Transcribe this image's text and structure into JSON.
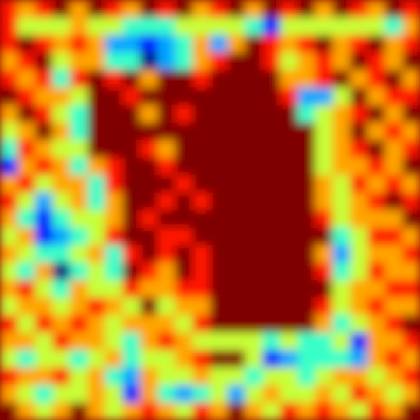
{
  "chart_data": {
    "type": "heatmap",
    "tick_labels": false,
    "cells": [
      [
        0.9,
        0.8,
        0.9,
        1,
        0.8,
        1,
        0.9,
        0.8,
        1,
        0.9,
        1,
        0.8,
        0.9,
        1,
        0.8,
        1,
        0.9,
        1,
        0.8,
        1,
        0.9,
        0.8,
        1,
        0.9
      ],
      [
        0.9,
        0.7,
        0.7,
        0.7,
        0.8,
        0.7,
        0.7,
        0.6,
        0.6,
        0.6,
        0.7,
        0.7,
        0.7,
        0.7,
        0.6,
        0.4,
        0.7,
        0.7,
        0.7,
        0.7,
        0.7,
        0.7,
        0.6,
        0.8
      ],
      [
        0.9,
        1,
        0.9,
        0.8,
        0.9,
        0.8,
        0.5,
        0.5,
        0.4,
        0.5,
        0.6,
        0.8,
        0.5,
        0.8,
        1,
        0.9,
        0.8,
        0.9,
        1,
        0.8,
        0.9,
        1,
        0.8,
        0.9
      ],
      [
        0.8,
        0.9,
        1,
        0.7,
        0.8,
        0.8,
        0.6,
        0.6,
        0.3,
        0.5,
        0.6,
        0.8,
        0.9,
        1,
        1,
        0.9,
        0.7,
        0.8,
        0.9,
        0.8,
        1,
        0.9,
        0.8,
        1
      ],
      [
        0.9,
        0.8,
        0.9,
        0.6,
        0.9,
        1,
        0.9,
        1,
        0.8,
        1,
        1,
        0.9,
        1,
        1,
        1,
        1,
        0.8,
        0.8,
        0.9,
        1,
        0.8,
        0.9,
        1,
        0.8
      ],
      [
        1,
        0.9,
        0.8,
        0.8,
        0.7,
        1,
        1,
        0.9,
        1,
        1,
        1,
        1,
        1,
        1,
        1,
        1,
        0.9,
        0.5,
        0.5,
        0.7,
        1,
        0.8,
        0.9,
        0.9
      ],
      [
        0.8,
        1,
        0.9,
        0.7,
        0.6,
        1,
        1,
        1,
        0.8,
        1,
        0.9,
        1,
        1,
        1,
        1,
        1,
        1,
        0.6,
        0.7,
        0.8,
        0.9,
        1,
        0.8,
        1
      ],
      [
        0.7,
        0.8,
        1,
        0.8,
        0.6,
        1,
        1,
        1,
        1,
        1,
        1,
        1,
        1,
        1,
        1,
        1,
        1,
        1,
        0.7,
        0.8,
        1,
        0.8,
        0.9,
        0.8
      ],
      [
        0.6,
        0.9,
        0.8,
        0.7,
        0.7,
        1,
        1,
        1,
        0.9,
        0.8,
        1,
        1,
        1,
        1,
        1,
        1,
        1,
        1,
        0.7,
        0.8,
        0.9,
        1,
        0.8,
        0.9
      ],
      [
        0.4,
        0.8,
        0.9,
        0.8,
        0.6,
        0.8,
        0.9,
        1,
        1,
        0.9,
        1,
        1,
        1,
        1,
        1,
        1,
        1,
        1,
        0.7,
        0.8,
        0.8,
        0.9,
        0.8,
        1
      ],
      [
        0.8,
        0.9,
        0.7,
        0.8,
        0.8,
        0.6,
        0.9,
        1,
        1,
        1,
        0.9,
        1,
        1,
        1,
        1,
        1,
        1,
        1,
        0.8,
        0.7,
        0.9,
        0.8,
        0.9,
        0.8
      ],
      [
        0.9,
        0.7,
        0.5,
        0.7,
        0.8,
        0.6,
        0.8,
        1,
        1,
        0.9,
        1,
        0.9,
        1,
        1,
        1,
        1,
        1,
        1,
        0.8,
        0.7,
        0.8,
        0.9,
        1,
        0.9
      ],
      [
        0.8,
        0.6,
        0.4,
        0.6,
        0.7,
        0.7,
        0.8,
        1,
        0.9,
        1,
        1,
        1,
        1,
        1,
        1,
        1,
        1,
        1,
        0.9,
        0.7,
        0.8,
        0.8,
        0.8,
        1
      ],
      [
        0.7,
        0.8,
        0.4,
        0.5,
        0.6,
        0.7,
        0.9,
        1,
        1,
        0.9,
        0.9,
        1,
        1,
        1,
        1,
        1,
        1,
        1,
        1,
        0.6,
        0.7,
        0.9,
        0.9,
        0.8
      ],
      [
        0.8,
        0.7,
        0.6,
        0.6,
        0.7,
        0.8,
        0.6,
        0.9,
        1,
        0.9,
        1,
        0.9,
        1,
        1,
        1,
        1,
        1,
        1,
        0.8,
        0.5,
        0.7,
        0.8,
        0.8,
        0.9
      ],
      [
        0.7,
        0.6,
        0.8,
        0.3,
        0.6,
        0.7,
        0.6,
        1,
        0.9,
        0.8,
        1,
        0.9,
        1,
        1,
        1,
        1,
        1,
        1,
        0.9,
        0.6,
        0.7,
        0.9,
        0.8,
        0.8
      ],
      [
        0.8,
        0.9,
        0.7,
        0.6,
        0.8,
        0.7,
        0.7,
        0.9,
        0.8,
        0.8,
        0.9,
        0.9,
        1,
        1,
        1,
        1,
        1,
        1,
        1,
        0.7,
        0.8,
        0.8,
        0.9,
        0.9
      ],
      [
        0.7,
        0.8,
        0.8,
        0.7,
        0.8,
        0.9,
        0.8,
        0.7,
        1,
        0.7,
        0.8,
        0.8,
        1,
        1,
        1,
        1,
        1,
        1,
        0.9,
        0.7,
        0.8,
        0.9,
        0.8,
        0.8
      ],
      [
        0.9,
        0.7,
        0.9,
        0.8,
        0.9,
        0.8,
        0.7,
        0.8,
        0.8,
        0.8,
        0.7,
        0.9,
        1,
        1,
        1,
        1,
        1,
        1,
        0.8,
        0.6,
        0.7,
        0.8,
        0.9,
        1
      ],
      [
        0.8,
        0.8,
        0.7,
        0.9,
        0.8,
        0.8,
        0.7,
        0.6,
        0.8,
        0.9,
        0.8,
        0.7,
        0.7,
        0.7,
        0.7,
        0.6,
        0.7,
        0.6,
        0.6,
        0.7,
        0.4,
        0.8,
        0.8,
        0.9
      ],
      [
        0.7,
        0.6,
        0.7,
        0.7,
        0.6,
        0.7,
        0.8,
        0.6,
        0.7,
        0.7,
        0.8,
        0.9,
        1,
        1,
        0.7,
        0.4,
        0.5,
        0.6,
        0.6,
        0.6,
        0.5,
        0.8,
        0.9,
        0.8
      ],
      [
        0.9,
        0.8,
        0.8,
        0.9,
        0.7,
        0.8,
        0.6,
        0.5,
        0.8,
        0.7,
        0.7,
        0.8,
        0.7,
        0.7,
        0.6,
        0.7,
        0.7,
        0.6,
        0.7,
        0.8,
        0.8,
        0.7,
        0.8,
        0.9
      ],
      [
        0.8,
        0.7,
        0.6,
        0.7,
        0.7,
        0.8,
        0.7,
        0.4,
        0.8,
        0.6,
        0.5,
        0.6,
        0.7,
        0.5,
        0.7,
        0.8,
        0.7,
        0.7,
        0.8,
        0.7,
        0.9,
        0.8,
        0.7,
        0.8
      ],
      [
        1,
        0.8,
        0.7,
        0.8,
        1,
        0.8,
        0.7,
        0.8,
        0.9,
        0.8,
        0.7,
        0.9,
        0.8,
        1,
        0.8,
        0.7,
        0.9,
        0.8,
        0.9,
        0.8,
        0.7,
        0.9,
        0.8,
        1
      ]
    ]
  }
}
